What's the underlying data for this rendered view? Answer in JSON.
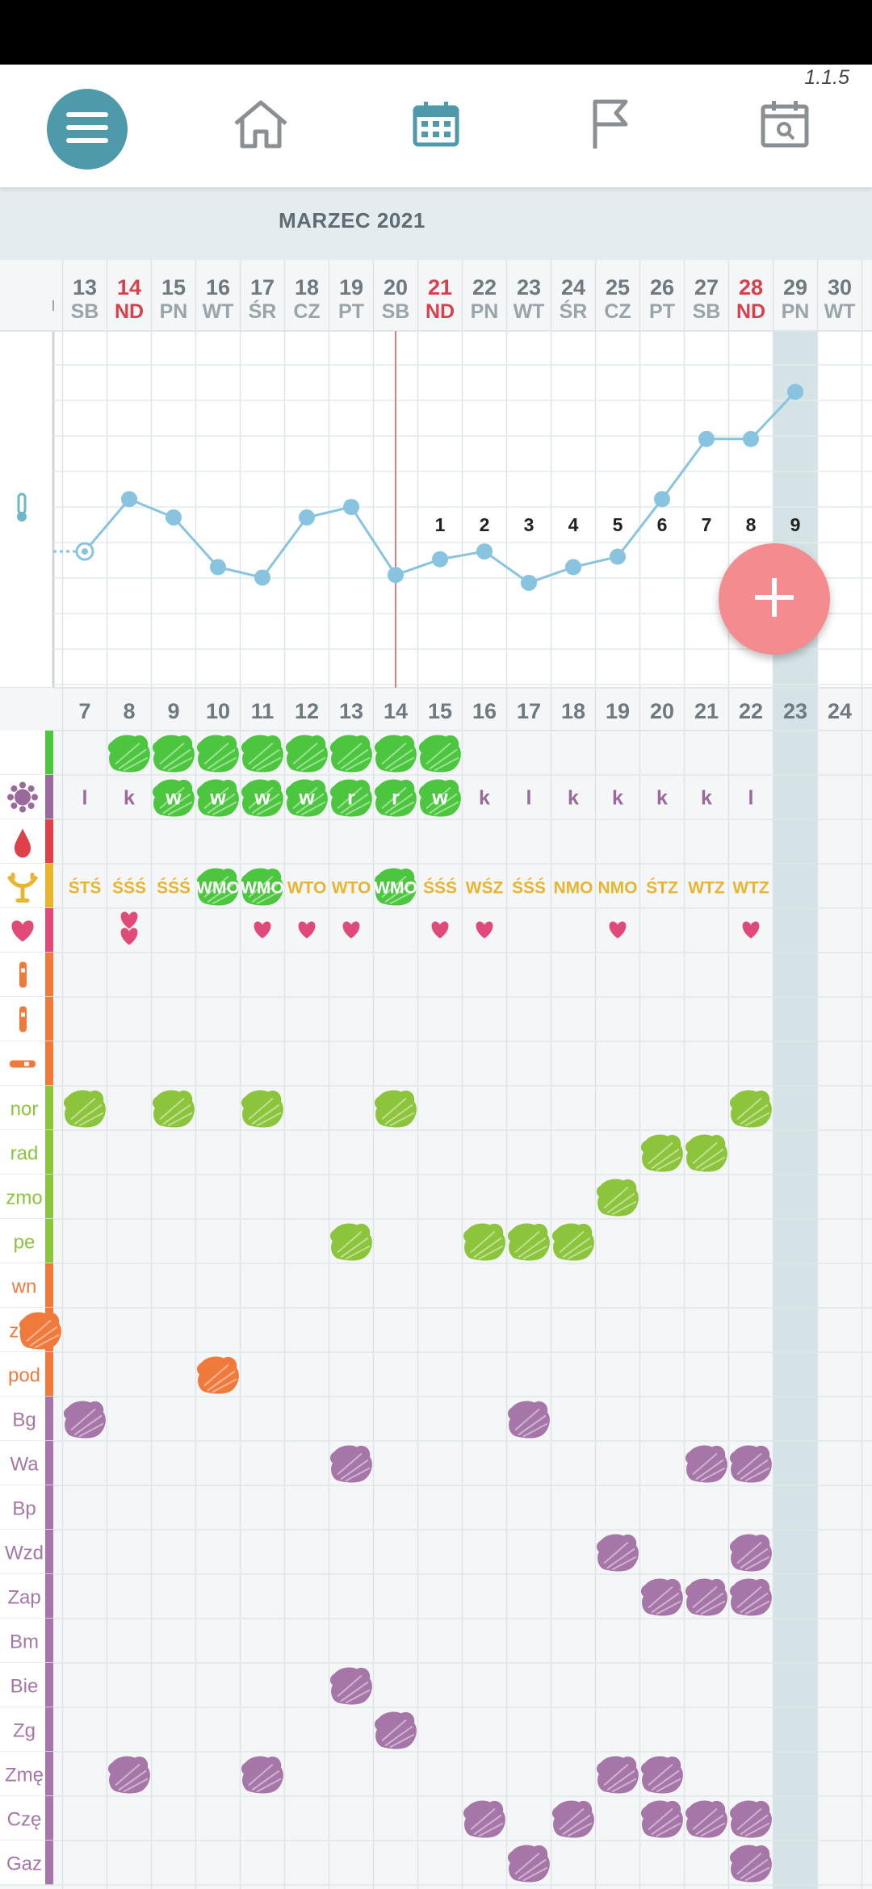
{
  "app": {
    "version": "1.1.5"
  },
  "nav": [
    {
      "icon": "menu-icon",
      "active": true
    },
    {
      "icon": "home-icon"
    },
    {
      "icon": "calendar-icon",
      "active": true
    },
    {
      "icon": "flag-icon"
    },
    {
      "icon": "calendar-search-icon"
    }
  ],
  "month": "MARZEC 2021",
  "days": [
    {
      "d": "13",
      "w": "SB"
    },
    {
      "d": "14",
      "w": "ND",
      "red": true
    },
    {
      "d": "15",
      "w": "PN"
    },
    {
      "d": "16",
      "w": "WT"
    },
    {
      "d": "17",
      "w": "ŚR"
    },
    {
      "d": "18",
      "w": "CZ"
    },
    {
      "d": "19",
      "w": "PT"
    },
    {
      "d": "20",
      "w": "SB"
    },
    {
      "d": "21",
      "w": "ND",
      "red": true
    },
    {
      "d": "22",
      "w": "PN"
    },
    {
      "d": "23",
      "w": "WT"
    },
    {
      "d": "24",
      "w": "ŚR"
    },
    {
      "d": "25",
      "w": "CZ"
    },
    {
      "d": "26",
      "w": "PT"
    },
    {
      "d": "27",
      "w": "SB"
    },
    {
      "d": "28",
      "w": "ND",
      "red": true
    },
    {
      "d": "29",
      "w": "PN"
    },
    {
      "d": "30",
      "w": "WT"
    }
  ],
  "cycle_days": [
    "7",
    "8",
    "9",
    "10",
    "11",
    "12",
    "13",
    "14",
    "15",
    "16",
    "17",
    "18",
    "19",
    "20",
    "21",
    "22",
    "23",
    "24"
  ],
  "temperature": {
    "icon": "thermometer-icon",
    "points": [
      0.66,
      1.06,
      0.92,
      0.54,
      0.46,
      0.92,
      1.0,
      0.48,
      0.6,
      0.66,
      0.42,
      0.54,
      0.62,
      1.06,
      1.52,
      1.52,
      1.88
    ],
    "phase_numbers": [
      "1",
      "2",
      "3",
      "4",
      "5",
      "6",
      "7",
      "8",
      "9"
    ],
    "phase_start_index": 8
  },
  "rows": [
    {
      "type": "bar",
      "color": "#4cc63f",
      "marks": [
        1,
        2,
        3,
        4,
        5,
        6,
        7,
        8
      ]
    },
    {
      "type": "text",
      "icon": "virus-icon",
      "color": "#9a6a9c",
      "mark_color": "#4cc63f",
      "cells": [
        {
          "t": "l"
        },
        {
          "t": "k"
        },
        {
          "t": "w",
          "m": 1
        },
        {
          "t": "w",
          "m": 1
        },
        {
          "t": "w",
          "m": 1
        },
        {
          "t": "w",
          "m": 1
        },
        {
          "t": "r",
          "m": 1
        },
        {
          "t": "r",
          "m": 1
        },
        {
          "t": "w",
          "m": 1
        },
        {
          "t": "k"
        },
        {
          "t": "l"
        },
        {
          "t": "k"
        },
        {
          "t": "k"
        },
        {
          "t": "k"
        },
        {
          "t": "k"
        },
        {
          "t": "l"
        }
      ]
    },
    {
      "type": "icon",
      "icon": "blood-drop-icon",
      "color": "#e0404a",
      "marks": []
    },
    {
      "type": "text",
      "icon": "cervix-icon",
      "color": "#e9b52e",
      "mark_color": "#4cc63f",
      "small": true,
      "cells": [
        {
          "t": "ŚTŚ"
        },
        {
          "t": "ŚŚŚ"
        },
        {
          "t": "ŚŚŚ"
        },
        {
          "t": "WMO",
          "m": 1
        },
        {
          "t": "WMO",
          "m": 1
        },
        {
          "t": "WTO"
        },
        {
          "t": "WTO"
        },
        {
          "t": "WMO",
          "m": 1
        },
        {
          "t": "ŚŚŚ"
        },
        {
          "t": "WŚZ"
        },
        {
          "t": "ŚŚŚ"
        },
        {
          "t": "NMO"
        },
        {
          "t": "NMO"
        },
        {
          "t": "ŚTZ"
        },
        {
          "t": "WTZ"
        },
        {
          "t": "WTZ"
        }
      ]
    },
    {
      "type": "hearts",
      "icon": "heart-icon",
      "color": "#e04a78",
      "hearts": {
        "1": 2,
        "4": 1,
        "5": 1,
        "6": 1,
        "8": 1,
        "9": 1,
        "12": 1,
        "15": 1
      }
    },
    {
      "type": "icon",
      "icon": "ovulation-test-icon",
      "color": "#f07a3c",
      "marks": []
    },
    {
      "type": "icon",
      "icon": "pregnancy-test-icon",
      "color": "#f07a3c",
      "marks": []
    },
    {
      "type": "icon",
      "icon": "thermometer-strip-icon",
      "color": "#f07a3c",
      "marks": []
    },
    {
      "type": "label",
      "label": "nor",
      "color": "#8cc43c",
      "marks": [
        0,
        2,
        4,
        7,
        15
      ]
    },
    {
      "type": "label",
      "label": "rad",
      "color": "#8cc43c",
      "marks": [
        13,
        14
      ]
    },
    {
      "type": "label",
      "label": "zmo",
      "color": "#8cc43c",
      "marks": [
        12
      ]
    },
    {
      "type": "label",
      "label": "pe",
      "color": "#8cc43c",
      "marks": [
        6,
        9,
        10,
        11
      ]
    },
    {
      "type": "label",
      "label": "wn",
      "color": "#f07a3c",
      "marks": []
    },
    {
      "type": "label",
      "label": "zes",
      "color": "#f07a3c",
      "marks": [
        -1
      ]
    },
    {
      "type": "label",
      "label": "pod",
      "color": "#f07a3c",
      "marks": [
        3
      ]
    },
    {
      "type": "label",
      "label": "Bg",
      "color": "#a676a8",
      "marks": [
        0,
        10
      ]
    },
    {
      "type": "label",
      "label": "Wa",
      "color": "#a676a8",
      "marks": [
        6,
        14,
        15
      ]
    },
    {
      "type": "label",
      "label": "Bp",
      "color": "#a676a8",
      "marks": []
    },
    {
      "type": "label",
      "label": "Wzd",
      "color": "#a676a8",
      "marks": [
        12,
        15
      ]
    },
    {
      "type": "label",
      "label": "Zap",
      "color": "#a676a8",
      "marks": [
        13,
        14,
        15
      ]
    },
    {
      "type": "label",
      "label": "Bm",
      "color": "#a676a8",
      "marks": []
    },
    {
      "type": "label",
      "label": "Bie",
      "color": "#a676a8",
      "marks": [
        6
      ]
    },
    {
      "type": "label",
      "label": "Zg",
      "color": "#a676a8",
      "marks": [
        7
      ]
    },
    {
      "type": "label",
      "label": "Zmę",
      "color": "#a676a8",
      "marks": [
        1,
        4,
        12,
        13
      ]
    },
    {
      "type": "label",
      "label": "Czę",
      "color": "#a676a8",
      "marks": [
        9,
        11,
        13,
        14,
        15
      ]
    },
    {
      "type": "label",
      "label": "Gaz",
      "color": "#a676a8",
      "marks": [
        10,
        15
      ]
    }
  ],
  "colors": {
    "accent": "#4f9aaa",
    "line": "#88c4e0",
    "today_col": "#d5e2e6",
    "today_line": "#e57c82",
    "fab": "#f48b8f"
  }
}
